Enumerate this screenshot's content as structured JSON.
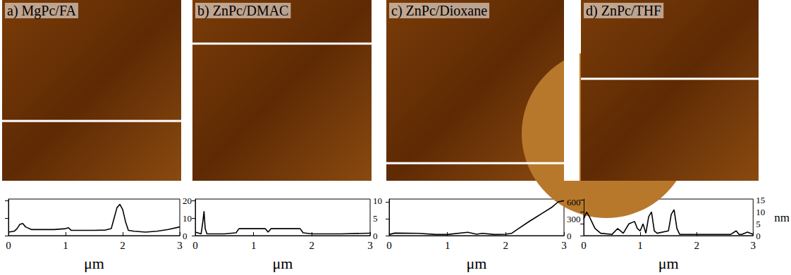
{
  "chart_data": [
    {
      "type": "line",
      "title": "a) MgPc/FA",
      "xlabel": "μm",
      "color": "#000000",
      "grid": false,
      "x": [
        0,
        0.1,
        0.15,
        0.2,
        0.25,
        0.3,
        0.4,
        0.5,
        0.6,
        0.8,
        1.0,
        1.05,
        1.1,
        1.3,
        1.5,
        1.7,
        1.8,
        1.85,
        1.9,
        1.95,
        2.0,
        2.05,
        2.1,
        2.2,
        2.4,
        2.6,
        2.8,
        3.0
      ],
      "values": [
        2,
        2.5,
        4,
        6.5,
        7,
        5,
        3.5,
        3.5,
        3.5,
        3.5,
        4,
        4.5,
        3,
        3,
        3,
        3.2,
        4,
        10,
        16,
        18,
        15,
        8,
        3,
        2.5,
        2,
        2.5,
        3.5,
        5
      ],
      "xlim": [
        0,
        3
      ],
      "xticks": [
        0,
        1,
        2,
        3
      ],
      "ylim": [
        0,
        21
      ],
      "yticks": [
        0,
        10,
        20
      ]
    },
    {
      "type": "line",
      "title": "b) ZnPc/DMAC",
      "xlabel": "μm",
      "color": "#000000",
      "grid": false,
      "x": [
        0,
        0.1,
        0.13,
        0.15,
        0.17,
        0.2,
        0.5,
        0.7,
        0.75,
        1.0,
        1.2,
        1.25,
        1.3,
        1.5,
        1.8,
        1.85,
        2.0,
        2.5,
        3.0
      ],
      "values": [
        1,
        0.5,
        4,
        7,
        2,
        0.5,
        0.5,
        0.8,
        2,
        2,
        2,
        1,
        2,
        2,
        2,
        0.8,
        0.5,
        0.5,
        0.7
      ],
      "xlim": [
        0,
        3
      ],
      "xticks": [
        0,
        1,
        2,
        3
      ],
      "ylim": [
        0,
        10.5
      ],
      "yticks": [
        0,
        5,
        10
      ]
    },
    {
      "type": "line",
      "title": "c) ZnPc/Dioxane",
      "xlabel": "μm",
      "color": "#000000",
      "grid": false,
      "x": [
        0,
        0.1,
        0.5,
        0.8,
        1.0,
        1.35,
        1.5,
        1.6,
        1.8,
        2.0,
        2.1,
        2.2,
        2.4,
        2.6,
        2.8,
        2.9,
        3.0
      ],
      "values": [
        20,
        45,
        40,
        20,
        20,
        60,
        25,
        40,
        20,
        25,
        40,
        110,
        250,
        380,
        510,
        600,
        620
      ],
      "xlim": [
        0,
        3
      ],
      "xticks": [
        0,
        1,
        2,
        3
      ],
      "ylim": [
        0,
        650
      ],
      "yticks": [
        0,
        300,
        600
      ]
    },
    {
      "type": "line",
      "title": "d) ZnPc/THF",
      "xlabel": "μm",
      "ylabel": "nm",
      "color": "#000000",
      "grid": false,
      "x": [
        0,
        0.05,
        0.1,
        0.2,
        0.3,
        0.5,
        0.6,
        0.7,
        0.8,
        0.9,
        0.95,
        1.0,
        1.05,
        1.1,
        1.15,
        1.2,
        1.25,
        1.3,
        1.5,
        1.55,
        1.6,
        1.65,
        1.7,
        2.0,
        2.6,
        2.7,
        2.75,
        2.8,
        2.9,
        3.0
      ],
      "values": [
        7,
        10,
        8,
        3,
        1,
        0.5,
        3,
        1,
        5,
        6,
        3,
        2,
        5,
        1,
        8,
        10,
        2,
        1,
        2,
        9,
        11,
        3,
        0.5,
        0.5,
        0.5,
        2,
        0.5,
        0.5,
        1.5,
        0.5
      ],
      "xlim": [
        0,
        3
      ],
      "xticks": [
        0,
        1,
        2,
        3
      ],
      "ylim": [
        0,
        15.5
      ],
      "yticks": [
        0,
        5,
        10,
        15
      ]
    }
  ]
}
